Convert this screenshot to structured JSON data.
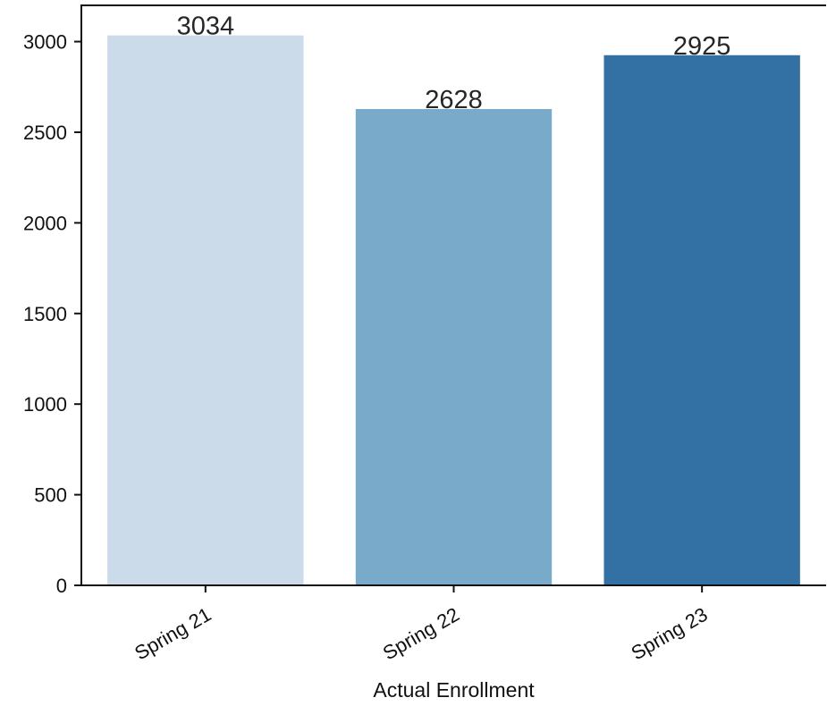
{
  "chart_data": {
    "type": "bar",
    "categories": [
      "Spring 21",
      "Spring 22",
      "Spring 23"
    ],
    "values": [
      3034,
      2628,
      2925
    ],
    "data_labels": [
      "3034",
      "2628",
      "2925"
    ],
    "colors": [
      "#cbdbe9",
      "#79aac9",
      "#3370a3"
    ],
    "title": "",
    "xlabel": "Actual Enrollment",
    "ylabel": "",
    "ylim": [
      0,
      3200
    ],
    "yticks": [
      0,
      500,
      1000,
      1500,
      2000,
      2500,
      3000
    ],
    "ytick_labels": [
      "0",
      "500",
      "1000",
      "1500",
      "2000",
      "2500",
      "3000"
    ],
    "grid": false,
    "legend": "none"
  }
}
